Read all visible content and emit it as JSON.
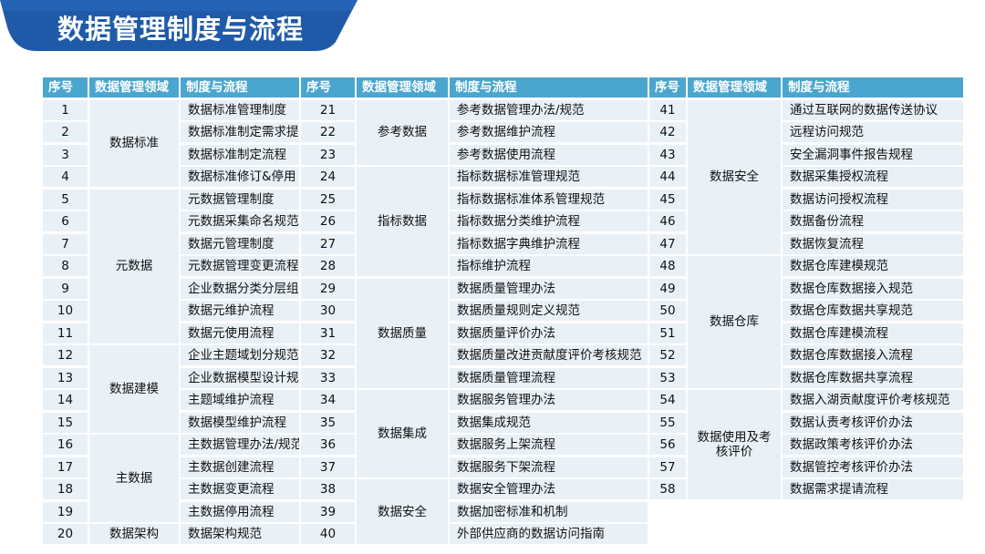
{
  "title": "数据管理制度与流程",
  "headers": [
    "序号",
    "数据管理领域",
    "制度与流程"
  ],
  "groups": [
    {
      "domains": [
        {
          "name": "数据标准",
          "start": 0,
          "span": 4
        },
        {
          "name": "元数据",
          "start": 4,
          "span": 7
        },
        {
          "name": "数据建模",
          "start": 11,
          "span": 4
        },
        {
          "name": "主数据",
          "start": 15,
          "span": 4
        },
        {
          "name": "数据架构",
          "start": 19,
          "span": 1
        }
      ],
      "rows": [
        {
          "no": "1",
          "item": "数据标准管理制度"
        },
        {
          "no": "2",
          "item": "数据标准制定需求提"
        },
        {
          "no": "3",
          "item": "数据标准制定流程"
        },
        {
          "no": "4",
          "item": "数据标准修订&停用"
        },
        {
          "no": "5",
          "item": "元数据管理制度"
        },
        {
          "no": "6",
          "item": "元数据采集命名规范"
        },
        {
          "no": "7",
          "item": "数据元管理制度"
        },
        {
          "no": "8",
          "item": "元数据管理变更流程"
        },
        {
          "no": "9",
          "item": "企业数据分类分层组"
        },
        {
          "no": "10",
          "item": "数据元维护流程"
        },
        {
          "no": "11",
          "item": "数据元使用流程"
        },
        {
          "no": "12",
          "item": "企业主题域划分规范"
        },
        {
          "no": "13",
          "item": "企业数据模型设计规"
        },
        {
          "no": "14",
          "item": "主题域维护流程"
        },
        {
          "no": "15",
          "item": "数据模型维护流程"
        },
        {
          "no": "16",
          "item": "主数据管理办法/规范"
        },
        {
          "no": "17",
          "item": "主数据创建流程"
        },
        {
          "no": "18",
          "item": "主数据变更流程"
        },
        {
          "no": "19",
          "item": "主数据停用流程"
        },
        {
          "no": "20",
          "item": "数据架构规范"
        }
      ]
    },
    {
      "domains": [
        {
          "name": "参考数据",
          "start": 0,
          "span": 3
        },
        {
          "name": "指标数据",
          "start": 3,
          "span": 5
        },
        {
          "name": "数据质量",
          "start": 8,
          "span": 5
        },
        {
          "name": "数据集成",
          "start": 13,
          "span": 4
        },
        {
          "name": "数据安全",
          "start": 17,
          "span": 3
        }
      ],
      "rows": [
        {
          "no": "21",
          "item": "参考数据管理办法/规范"
        },
        {
          "no": "22",
          "item": "参考数据维护流程"
        },
        {
          "no": "23",
          "item": "参考数据使用流程"
        },
        {
          "no": "24",
          "item": "指标数据标准管理规范"
        },
        {
          "no": "25",
          "item": "指标数据标准体系管理规范"
        },
        {
          "no": "26",
          "item": "指标数据分类维护流程"
        },
        {
          "no": "27",
          "item": "指标数据字典维护流程"
        },
        {
          "no": "28",
          "item": "指标维护流程"
        },
        {
          "no": "29",
          "item": "数据质量管理办法"
        },
        {
          "no": "30",
          "item": "数据质量规则定义规范"
        },
        {
          "no": "31",
          "item": "数据质量评价办法"
        },
        {
          "no": "32",
          "item": "数据质量改进贡献度评价考核规范"
        },
        {
          "no": "33",
          "item": "数据质量管理流程"
        },
        {
          "no": "34",
          "item": "数据服务管理办法"
        },
        {
          "no": "35",
          "item": "数据集成规范"
        },
        {
          "no": "36",
          "item": "数据服务上架流程"
        },
        {
          "no": "37",
          "item": "数据服务下架流程"
        },
        {
          "no": "38",
          "item": "数据安全管理办法"
        },
        {
          "no": "39",
          "item": "数据加密标准和机制"
        },
        {
          "no": "40",
          "item": "外部供应商的数据访问指南"
        }
      ]
    },
    {
      "domains": [
        {
          "name": "数据安全",
          "start": 0,
          "span": 7
        },
        {
          "name": "数据仓库",
          "start": 7,
          "span": 6
        },
        {
          "name": "数据使用及考核评价",
          "start": 13,
          "span": 5
        }
      ],
      "rows": [
        {
          "no": "41",
          "item": "通过互联网的数据传送协议"
        },
        {
          "no": "42",
          "item": "远程访问规范"
        },
        {
          "no": "43",
          "item": "安全漏洞事件报告规程"
        },
        {
          "no": "44",
          "item": "数据采集授权流程"
        },
        {
          "no": "45",
          "item": "数据访问授权流程"
        },
        {
          "no": "46",
          "item": "数据备份流程"
        },
        {
          "no": "47",
          "item": "数据恢复流程"
        },
        {
          "no": "48",
          "item": "数据仓库建模规范"
        },
        {
          "no": "49",
          "item": "数据仓库数据接入规范"
        },
        {
          "no": "50",
          "item": "数据仓库数据共享规范"
        },
        {
          "no": "51",
          "item": "数据仓库建模流程"
        },
        {
          "no": "52",
          "item": "数据仓库数据接入流程"
        },
        {
          "no": "53",
          "item": "数据仓库数据共享流程"
        },
        {
          "no": "54",
          "item": "数据入湖贡献度评价考核规范"
        },
        {
          "no": "55",
          "item": "数据认责考核评价办法"
        },
        {
          "no": "56",
          "item": "数据政策考核评价办法"
        },
        {
          "no": "57",
          "item": "数据管控考核评价办法"
        },
        {
          "no": "58",
          "item": "数据需求提请流程"
        }
      ]
    }
  ],
  "colors": {
    "header": "#4aa6ce",
    "cell": "#e9f1f7",
    "banner": "#1b4f9c"
  }
}
